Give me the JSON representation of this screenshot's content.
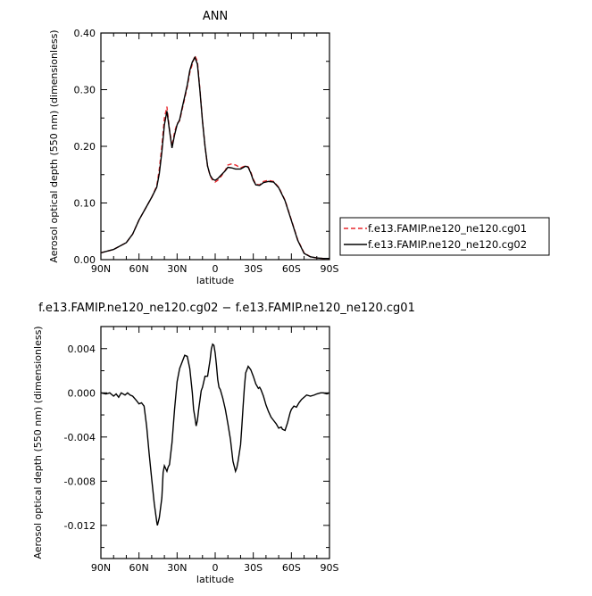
{
  "chart_data": [
    {
      "type": "line",
      "title": "ANN",
      "xlabel": "latitude",
      "ylabel": "Aerosol optical depth (550 nm) (dimensionless)",
      "xlim": [
        90,
        -90
      ],
      "ylim": [
        0,
        0.4
      ],
      "xticks": [
        90,
        60,
        30,
        0,
        -30,
        -60,
        -90
      ],
      "xtick_labels": [
        "90N",
        "60N",
        "30N",
        "0",
        "30S",
        "60S",
        "90S"
      ],
      "yticks": [
        0,
        0.1,
        0.2,
        0.3,
        0.4
      ],
      "ytick_labels": [
        "0.00",
        "0.10",
        "0.20",
        "0.30",
        "0.40"
      ],
      "legend_position": "right",
      "series": [
        {
          "name": "f.e13.FAMIP.ne120_ne120.cg01",
          "color": "#e8292e",
          "dash": "dashed",
          "x": [
            90,
            80,
            70,
            65,
            60,
            55,
            50,
            46,
            44,
            42,
            40,
            38,
            36,
            34,
            32,
            30,
            28,
            26,
            24,
            22,
            20,
            18,
            16,
            14,
            12,
            10,
            8,
            6,
            4,
            2,
            0,
            -2,
            -5,
            -8,
            -10,
            -13,
            -16,
            -20,
            -24,
            -26,
            -28,
            -30,
            -32,
            -35,
            -38,
            -42,
            -46,
            -50,
            -55,
            -60,
            -65,
            -70,
            -75,
            -80,
            -85,
            -90
          ],
          "y": [
            0.012,
            0.018,
            0.03,
            0.045,
            0.07,
            0.09,
            0.11,
            0.13,
            0.16,
            0.2,
            0.25,
            0.27,
            0.23,
            0.2,
            0.225,
            0.24,
            0.245,
            0.265,
            0.285,
            0.305,
            0.33,
            0.345,
            0.36,
            0.35,
            0.3,
            0.245,
            0.2,
            0.165,
            0.148,
            0.14,
            0.137,
            0.14,
            0.148,
            0.158,
            0.167,
            0.169,
            0.167,
            0.162,
            0.166,
            0.164,
            0.155,
            0.142,
            0.133,
            0.132,
            0.138,
            0.14,
            0.138,
            0.128,
            0.105,
            0.07,
            0.035,
            0.012,
            0.005,
            0.003,
            0.002,
            0.002
          ]
        },
        {
          "name": "f.e13.FAMIP.ne120_ne120.cg02",
          "color": "#000000",
          "dash": "solid",
          "x": [
            90,
            80,
            70,
            65,
            60,
            55,
            50,
            46,
            44,
            42,
            40,
            38,
            36,
            34,
            32,
            30,
            28,
            26,
            24,
            22,
            20,
            18,
            16,
            14,
            12,
            10,
            8,
            6,
            4,
            2,
            0,
            -2,
            -5,
            -8,
            -10,
            -13,
            -16,
            -20,
            -24,
            -26,
            -28,
            -30,
            -32,
            -35,
            -38,
            -42,
            -46,
            -50,
            -55,
            -60,
            -65,
            -70,
            -75,
            -80,
            -85,
            -90
          ],
          "y": [
            0.012,
            0.018,
            0.03,
            0.045,
            0.07,
            0.09,
            0.11,
            0.128,
            0.152,
            0.19,
            0.238,
            0.262,
            0.228,
            0.197,
            0.22,
            0.238,
            0.247,
            0.268,
            0.288,
            0.308,
            0.334,
            0.349,
            0.357,
            0.345,
            0.298,
            0.244,
            0.2,
            0.165,
            0.149,
            0.142,
            0.14,
            0.143,
            0.15,
            0.157,
            0.163,
            0.162,
            0.16,
            0.16,
            0.165,
            0.163,
            0.153,
            0.14,
            0.132,
            0.131,
            0.136,
            0.138,
            0.137,
            0.127,
            0.104,
            0.069,
            0.034,
            0.011,
            0.005,
            0.003,
            0.002,
            0.002
          ]
        }
      ]
    },
    {
      "type": "line",
      "title": "f.e13.FAMIP.ne120_ne120.cg02 − f.e13.FAMIP.ne120_ne120.cg01",
      "xlabel": "latitude",
      "ylabel": "Aerosol optical depth (550 nm) (dimensionless)",
      "xlim": [
        90,
        -90
      ],
      "ylim": [
        -0.015,
        0.006
      ],
      "xticks": [
        90,
        60,
        30,
        0,
        -30,
        -60,
        -90
      ],
      "xtick_labels": [
        "90N",
        "60N",
        "30N",
        "0",
        "30S",
        "60S",
        "90S"
      ],
      "yticks": [
        0.004,
        0,
        -0.004,
        -0.008,
        -0.012
      ],
      "ytick_labels": [
        "0.004",
        "0.000",
        "-0.004",
        "-0.008",
        "-0.012"
      ],
      "series": [
        {
          "color": "#000000",
          "dash": "solid",
          "x": [
            90,
            86,
            83,
            80,
            78,
            76,
            74,
            71,
            69,
            67,
            65,
            62,
            60,
            58,
            56,
            54,
            52,
            50,
            48,
            46,
            45.5,
            44,
            42,
            41,
            40,
            38,
            37,
            36,
            34,
            32,
            30,
            28,
            26,
            24,
            22,
            20,
            18,
            17,
            16,
            15,
            14,
            13,
            11,
            10,
            8,
            6,
            4,
            3,
            2,
            1,
            0,
            -1,
            -2,
            -3,
            -4,
            -6,
            -8,
            -10,
            -12,
            -13,
            -14,
            -16,
            -17,
            -18,
            -20,
            -21,
            -22,
            -23,
            -24,
            -26,
            -28,
            -30,
            -32,
            -34,
            -35,
            -36,
            -38,
            -40,
            -42,
            -44,
            -46,
            -48,
            -50,
            -52,
            -53,
            -55,
            -57,
            -59,
            -60,
            -62,
            -64,
            -66,
            -68,
            -70,
            -72,
            -75,
            -78,
            -80,
            -83,
            -85,
            -88,
            -90
          ],
          "y": [
            0.0,
            -0.0001,
            0.0,
            -0.0003,
            -0.0001,
            -0.0004,
            0.0,
            -0.0002,
            0.0,
            -0.0002,
            -0.0003,
            -0.0007,
            -0.001,
            -0.0009,
            -0.0012,
            -0.003,
            -0.0055,
            -0.0078,
            -0.01,
            -0.0117,
            -0.012,
            -0.0113,
            -0.0095,
            -0.0072,
            -0.0066,
            -0.0071,
            -0.0067,
            -0.0065,
            -0.0045,
            -0.0015,
            0.001,
            0.0022,
            0.0028,
            0.0034,
            0.0033,
            0.0022,
            0.0,
            -0.0015,
            -0.0022,
            -0.003,
            -0.0025,
            -0.0015,
            0.0002,
            0.0005,
            0.0015,
            0.0015,
            0.003,
            0.004,
            0.0044,
            0.0043,
            0.0036,
            0.0025,
            0.0012,
            0.0005,
            0.0003,
            -0.0005,
            -0.0015,
            -0.0028,
            -0.0042,
            -0.0052,
            -0.0062,
            -0.0071,
            -0.0068,
            -0.0062,
            -0.0047,
            -0.003,
            -0.0012,
            0.0005,
            0.0018,
            0.0024,
            0.0021,
            0.0015,
            0.0008,
            0.0004,
            0.0005,
            0.0003,
            -0.0003,
            -0.0011,
            -0.0017,
            -0.0022,
            -0.0025,
            -0.0028,
            -0.0032,
            -0.0031,
            -0.0033,
            -0.0034,
            -0.0027,
            -0.0018,
            -0.0015,
            -0.0012,
            -0.0013,
            -0.0009,
            -0.0006,
            -0.0004,
            -0.0002,
            -0.0003,
            -0.0002,
            -0.0001,
            0.0,
            0.0,
            -0.0001,
            0.0
          ]
        }
      ]
    }
  ]
}
